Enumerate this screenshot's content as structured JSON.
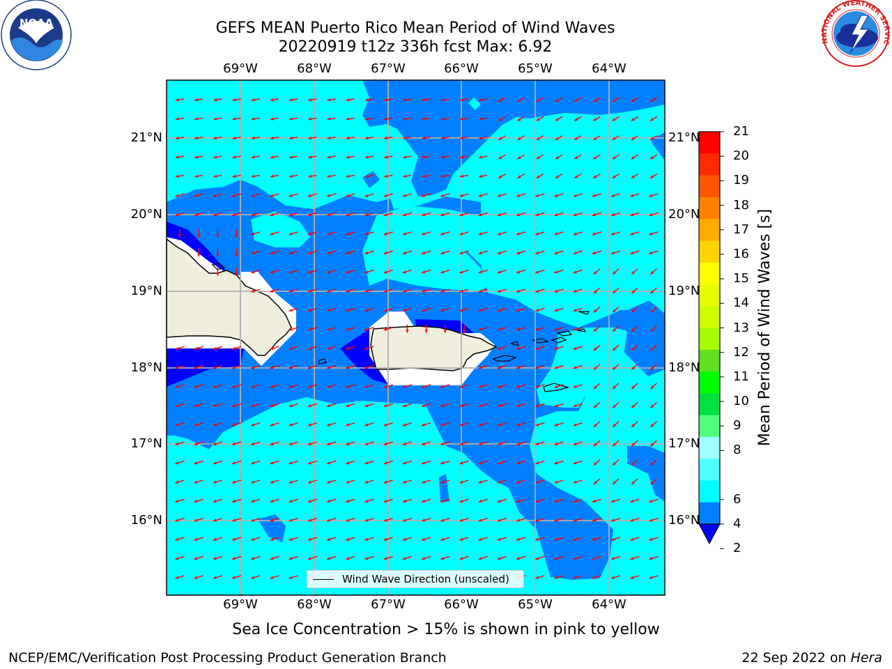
{
  "header": {
    "title_line1": "GEFS MEAN Puerto Rico Mean Period of Wind Waves",
    "title_line2": "20220919 t12z 336h fcst   Max: 6.92"
  },
  "logos": {
    "left": {
      "name": "noaa-logo",
      "text": "NOAA",
      "ring_text": "NATIONAL OCEANIC AND ATMOSPHERIC ADMINISTRATION · U.S. DEPARTMENT OF COMMERCE"
    },
    "right": {
      "name": "nws-logo",
      "ring_text": "NATIONAL WEATHER SERVICE"
    }
  },
  "map": {
    "lon_ticks": [
      "69°W",
      "68°W",
      "67°W",
      "66°W",
      "65°W",
      "64°W"
    ],
    "lat_ticks": [
      "21°N",
      "20°N",
      "19°N",
      "18°N",
      "17°N",
      "16°N"
    ],
    "colors": {
      "ocean_light": "#00ffff",
      "ocean_mid": "#0080ff",
      "ocean_deep": "#0000ff",
      "land": "#f0eedc",
      "no_data": "#ffffff",
      "arrow": "#ff0000",
      "grid": "#b0b0b0"
    },
    "legend_label": "Wind Wave Direction (unscaled)"
  },
  "colorbar": {
    "label": "Mean Period of Wind Waves [s]",
    "ticks": [
      "21",
      "20",
      "19",
      "18",
      "17",
      "16",
      "15",
      "14",
      "13",
      "12",
      "11",
      "10",
      "9",
      "8",
      "6",
      "4",
      "2"
    ],
    "colors": [
      "#ff0000",
      "#ff2a00",
      "#ff5500",
      "#ff8000",
      "#ffaa00",
      "#ffd400",
      "#ffff00",
      "#e8ff00",
      "#d0ff00",
      "#a8ff00",
      "#60e020",
      "#00ff00",
      "#00e040",
      "#50ff80",
      "#a0ffff",
      "#50ffff",
      "#00ffff",
      "#0080ff"
    ],
    "underflow_color": "#0000ff"
  },
  "footer": {
    "note": "Sea Ice Concentration > 15% is shown in pink to yellow",
    "credit": "NCEP/EMC/Verification Post Processing Product Generation Branch",
    "date": "22 Sep 2022 on",
    "host": "Hera"
  }
}
